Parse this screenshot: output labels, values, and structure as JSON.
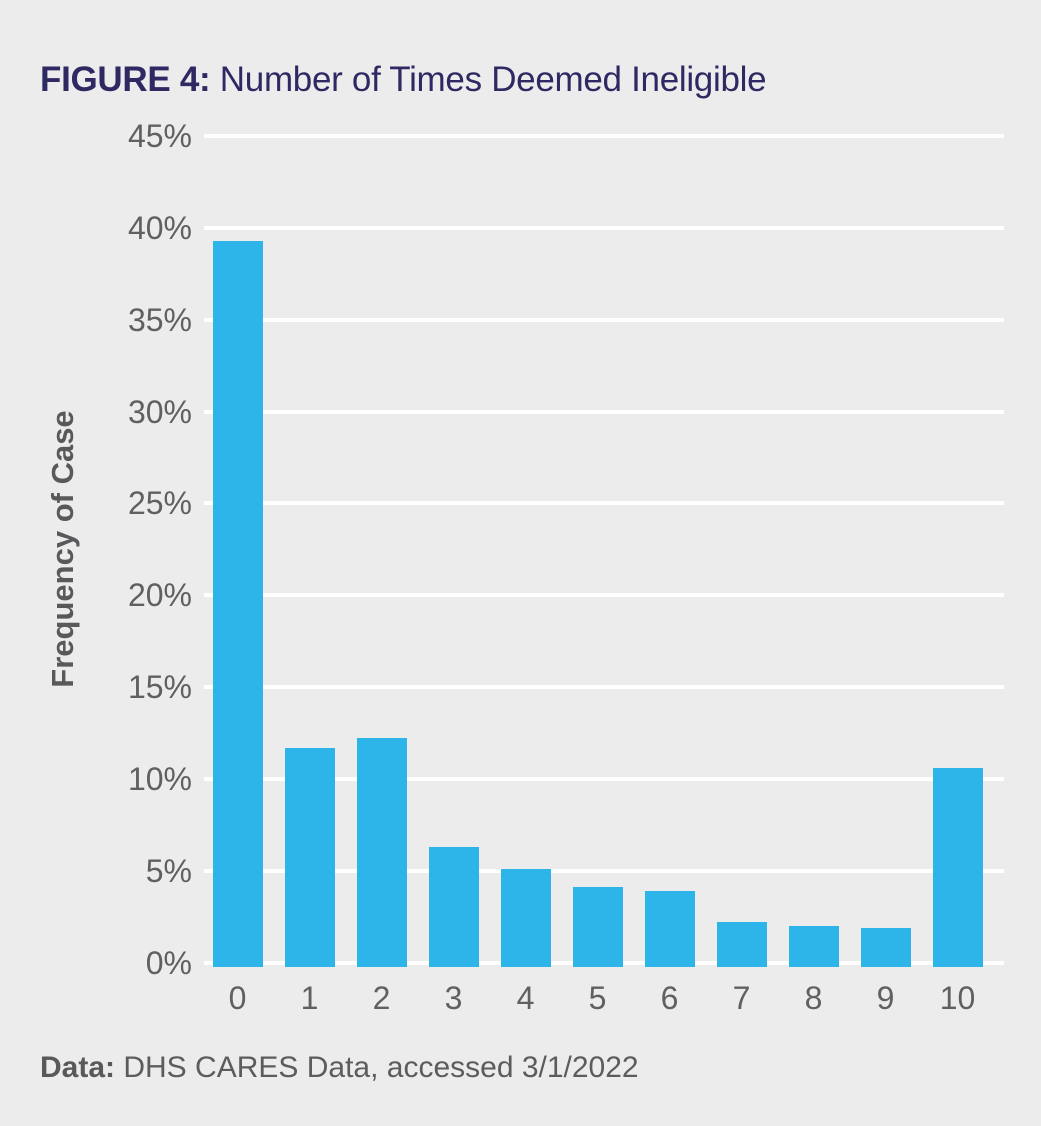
{
  "page": {
    "background": "#ececec",
    "title": {
      "prefix": "FIGURE 4:",
      "rest": " Number of Times Deemed Ineligible",
      "color": "#2e2962"
    }
  },
  "footer": {
    "prefix": "Data:",
    "rest": " DHS CARES Data, accessed 3/1/2022"
  },
  "chart_data": {
    "type": "bar",
    "title": "FIGURE 4: Number of Times Deemed Ineligible",
    "categories": [
      "0",
      "1",
      "2",
      "3",
      "4",
      "5",
      "6",
      "7",
      "8",
      "9",
      "10"
    ],
    "values": [
      39.3,
      11.7,
      12.2,
      6.3,
      5.1,
      4.1,
      3.9,
      2.2,
      2.0,
      1.9,
      10.6
    ],
    "xlabel": "",
    "ylabel": "Frequency of Case",
    "ylim": [
      0,
      45
    ],
    "ytick_step": 5,
    "yticks": [
      "0%",
      "5%",
      "10%",
      "15%",
      "20%",
      "25%",
      "30%",
      "35%",
      "40%",
      "45%"
    ],
    "grid": true,
    "gridline_color": "#ffffff",
    "bar_color": "#2db4e9",
    "axis_text_color": "#5f6062",
    "legend_position": "none"
  }
}
